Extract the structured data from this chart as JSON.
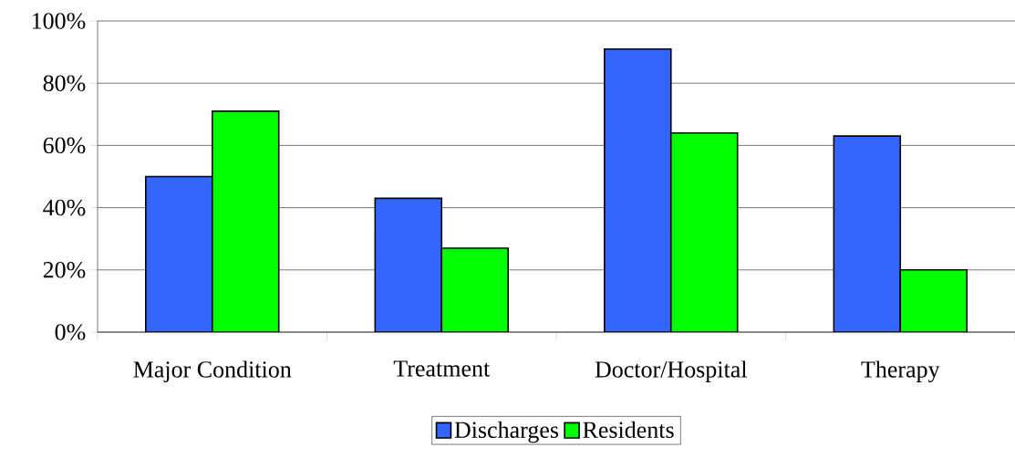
{
  "chart_data": {
    "type": "bar",
    "categories": [
      "Major Condition",
      "Treatment",
      "Doctor/Hospital",
      "Therapy"
    ],
    "series": [
      {
        "name": "Discharges",
        "color": "#3366ff",
        "values": [
          50,
          43,
          91,
          63
        ]
      },
      {
        "name": "Residents",
        "color": "#00ff00",
        "values": [
          71,
          27,
          64,
          20
        ]
      }
    ],
    "ylim": [
      0,
      100
    ],
    "yticks": [
      {
        "value": 0,
        "label": "0%"
      },
      {
        "value": 20,
        "label": "20%"
      },
      {
        "value": 40,
        "label": "40%"
      },
      {
        "value": 60,
        "label": "60%"
      },
      {
        "value": 80,
        "label": "80%"
      },
      {
        "value": 100,
        "label": "100%"
      }
    ],
    "grid": "y",
    "legend": "bottom"
  }
}
